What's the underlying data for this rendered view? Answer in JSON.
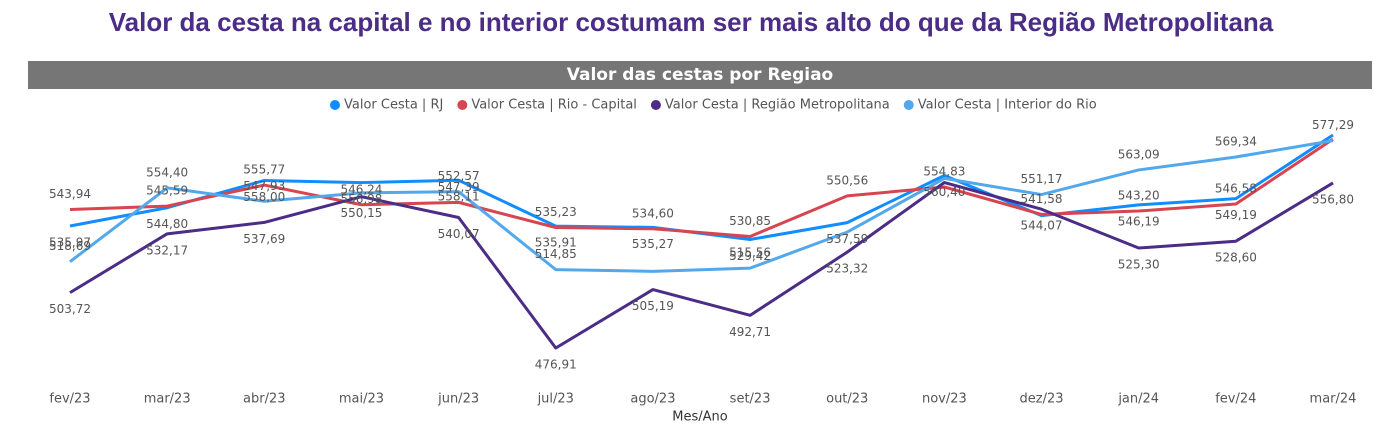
{
  "page_title": "Valor da cesta na capital e no interior costumam ser mais alto do que da Região Metropolitana",
  "chart_data": {
    "type": "line",
    "title": "Valor das cestas por Regiao",
    "x_label": "Mes/Ano",
    "categories": [
      "fev/23",
      "mar/23",
      "abr/23",
      "mai/23",
      "jun/23",
      "jul/23",
      "ago/23",
      "set/23",
      "out/23",
      "nov/23",
      "dez/23",
      "jan/24",
      "fev/24",
      "mar/24"
    ],
    "series": [
      {
        "name": "Valor Cesta | RJ",
        "color": "#118DFF",
        "values": [
          535.97,
          544.8,
          558.0,
          556.98,
          558.11,
          535.91,
          535.27,
          529.42,
          537.59,
          560.4,
          541.0,
          546.19,
          549.19,
          580.0
        ],
        "value_labels": [
          "535,97",
          "544,80",
          "558,00",
          "556,98",
          "558,11",
          "535,91",
          "535,27",
          "529,42",
          "537,59",
          "560,40",
          null,
          "546,19",
          "549,19",
          null
        ]
      },
      {
        "name": "Valor Cesta | Rio - Capital",
        "color": "#D64550",
        "values": [
          543.94,
          545.59,
          555.77,
          546.24,
          547.39,
          535.23,
          534.6,
          530.85,
          550.56,
          554.83,
          541.58,
          543.2,
          546.58,
          578.0
        ],
        "value_labels": [
          "543,94",
          "545,59",
          "555,77",
          "546,24",
          "547,39",
          "535,23",
          "534,60",
          "530,85",
          "550,56",
          "554,83",
          "541,58",
          "543,20",
          "546,58",
          null
        ]
      },
      {
        "name": "Valor Cesta | Região Metropolitana",
        "color": "#4B2C86",
        "values": [
          503.72,
          532.17,
          537.69,
          550.15,
          540.07,
          476.91,
          505.19,
          492.71,
          523.32,
          557.0,
          544.07,
          525.3,
          528.6,
          556.8
        ],
        "value_labels": [
          "503,72",
          "532,17",
          "537,69",
          "550,15",
          "540,07",
          "476,91",
          "505,19",
          "492,71",
          "523,32",
          null,
          "544,07",
          "525,30",
          "528,60",
          "556,80"
        ]
      },
      {
        "name": "Valor Cesta | Interior do Rio",
        "color": "#53A8EB",
        "values": [
          518.69,
          554.4,
          547.93,
          552.0,
          552.57,
          514.85,
          514.0,
          515.56,
          533.0,
          559.0,
          551.17,
          563.09,
          569.34,
          577.29
        ],
        "value_labels": [
          "518,69",
          "554,40",
          "547,93",
          null,
          "552,57",
          "514,85",
          null,
          "515,56",
          null,
          null,
          "551,17",
          "563,09",
          "569,34",
          "577,29"
        ]
      }
    ]
  }
}
